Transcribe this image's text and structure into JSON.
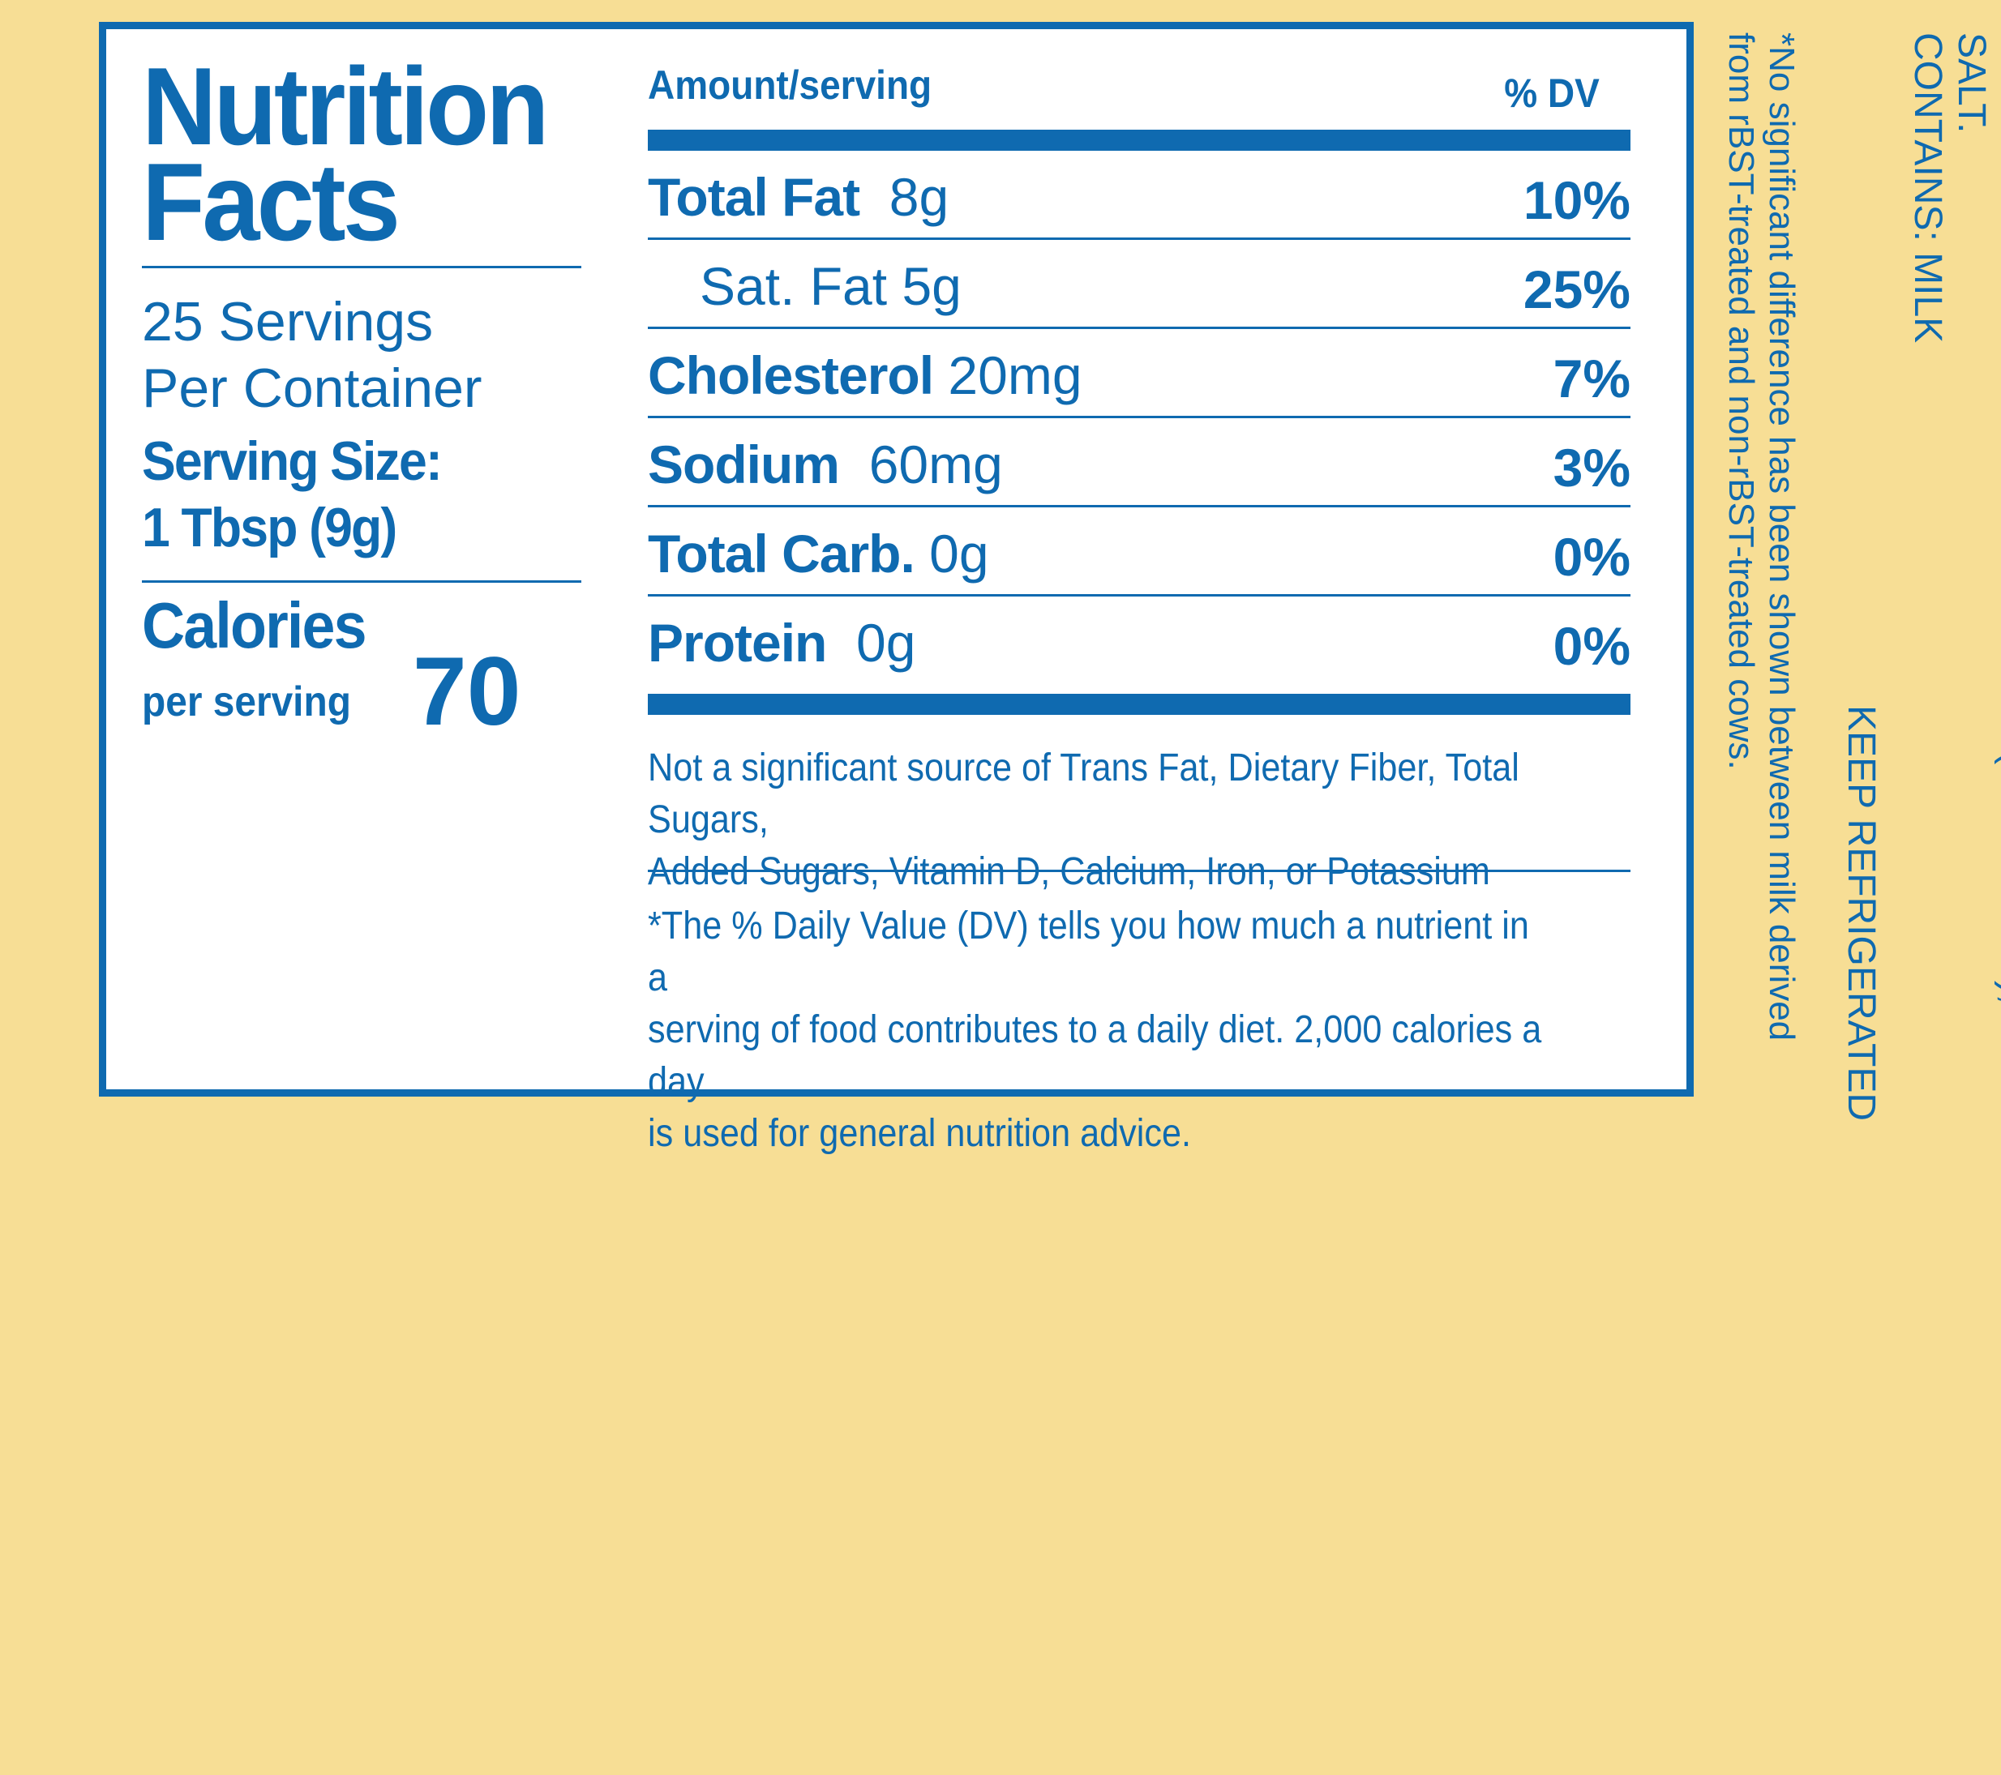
{
  "label": {
    "title_line1": "Nutrition",
    "title_line2": "Facts",
    "servings_line1": "25 Servings",
    "servings_line2": "Per Container",
    "serving_size_label": "Serving Size:",
    "serving_size_value": "1 Tbsp (9g)",
    "calories_label": "Calories",
    "calories_sub": "per serving",
    "calories_value": "70",
    "amount_header": "Amount/serving",
    "dv_header": "% DV",
    "nutrients": [
      {
        "name": "Total Fat",
        "amount": "8g",
        "dv": "10%"
      },
      {
        "name": "Sat. Fat",
        "amount": "5g",
        "dv": "25%"
      },
      {
        "name": "Cholesterol",
        "amount": "20mg",
        "dv": "7%"
      },
      {
        "name": "Sodium",
        "amount": "60mg",
        "dv": "3%"
      },
      {
        "name": "Total Carb.",
        "amount": "0g",
        "dv": "0%"
      },
      {
        "name": "Protein",
        "amount": "0g",
        "dv": "0%"
      }
    ],
    "not_significant_line1": "Not a significant source of Trans Fat, Dietary Fiber, Total Sugars,",
    "not_significant_line2": "Added Sugars, Vitamin D, Calcium, Iron, or Potassium",
    "footnote_line1": "*The % Daily Value (DV) tells you how much a nutrient in a",
    "footnote_line2": "serving of food contributes to a daily diet. 2,000 calories a day",
    "footnote_line3": "is used for general nutrition advice."
  },
  "side": {
    "ingredients": "INGREDIENTS: PASTEURIZED CREAM (FROM MILK), SALT.",
    "contains": "CONTAINS: MILK",
    "keep": "KEEP REFRIGERATED",
    "rbst_line1": "*No significant difference has been shown between milk derived",
    "rbst_line2": "from rBST-treated and non-rBST-treated cows."
  },
  "colors": {
    "blue": "#0F6AB0",
    "background": "#F7DE95",
    "panel": "#FFFFFF"
  }
}
